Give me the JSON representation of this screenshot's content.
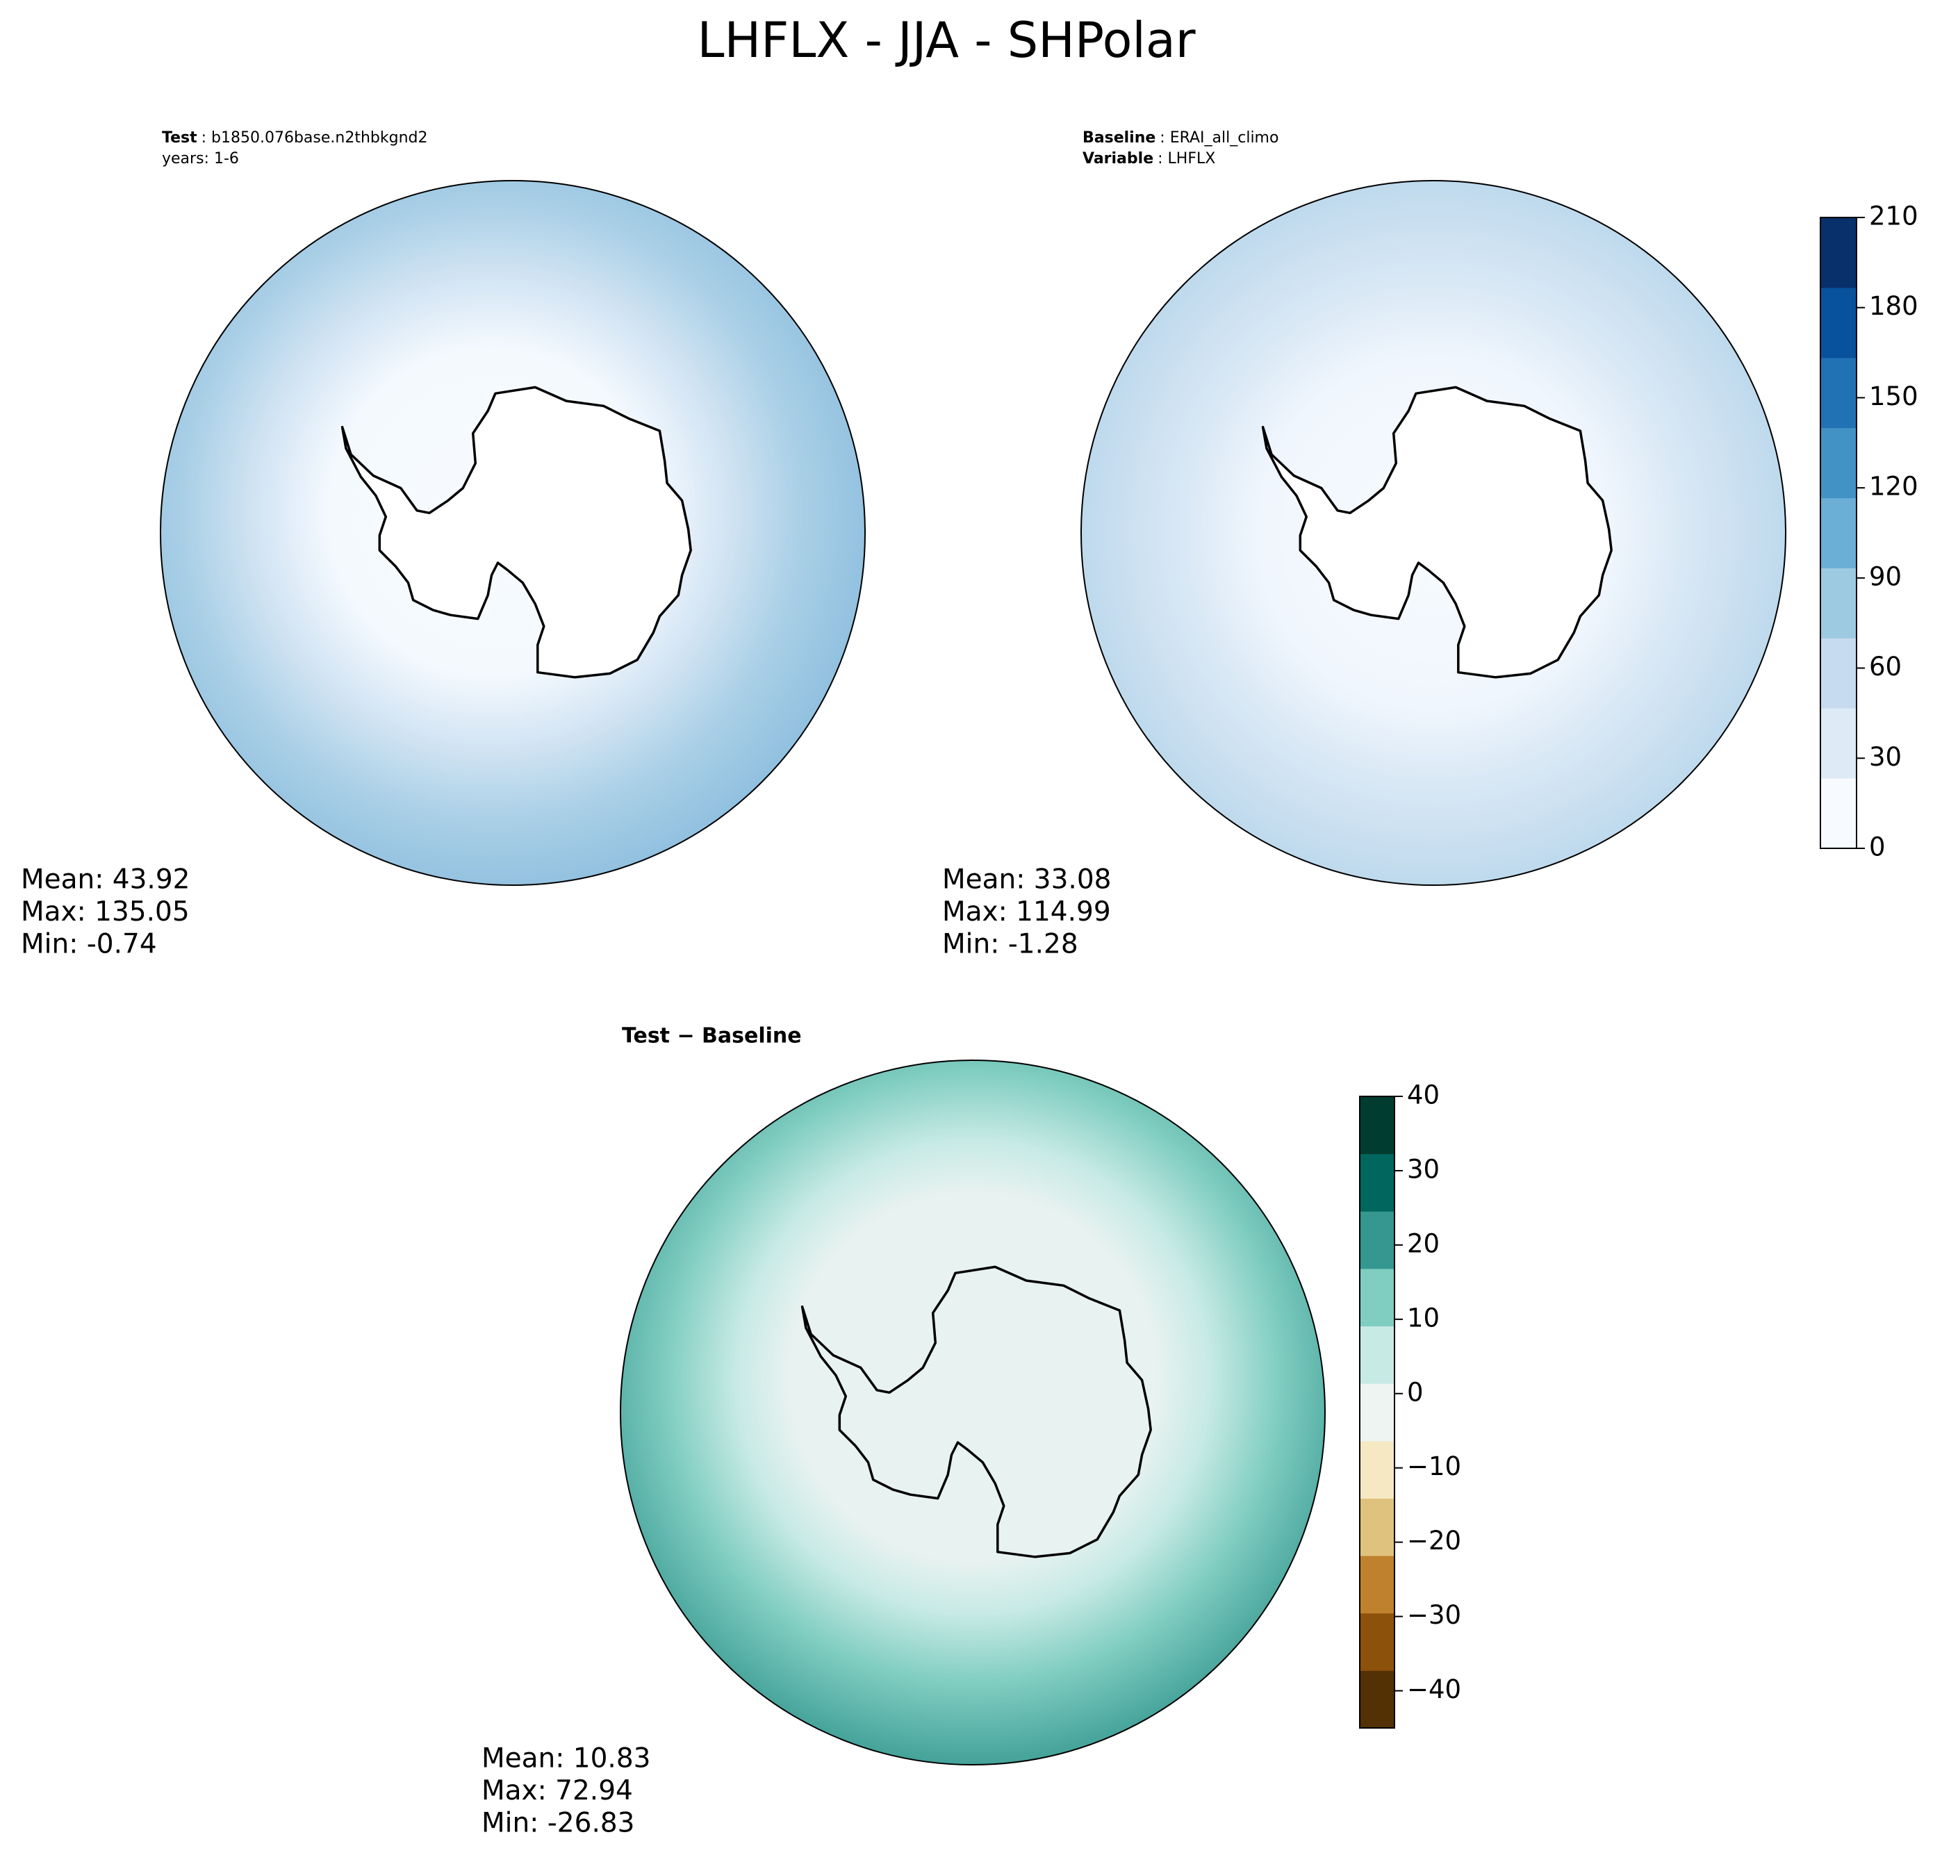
{
  "title": "LHFLX - JJA - SHPolar",
  "chart_data": [
    {
      "type": "map",
      "header": [
        {
          "key": "Test",
          "text": ": b1850.076base.n2thbkgnd2"
        },
        {
          "key": null,
          "text": "years: 1-6"
        }
      ],
      "stats": [
        "Mean: 43.92",
        "Max: 135.05",
        "Min: -0.74"
      ]
    },
    {
      "type": "map",
      "header": [
        {
          "key": "Baseline",
          "text": ": ERAI_all_climo"
        },
        {
          "key": "Variable",
          "text": ": LHFLX"
        }
      ],
      "stats": [
        "Mean: 33.08",
        "Max: 114.99",
        "Min: -1.28"
      ],
      "colorbar": {
        "clim": [
          0,
          210
        ],
        "ticks": [
          0,
          30,
          60,
          90,
          120,
          150,
          180,
          210
        ],
        "colors": [
          "#f7fbff",
          "#deebf7",
          "#c6dbef",
          "#9ecae1",
          "#6baed6",
          "#4292c6",
          "#2171b5",
          "#08519c",
          "#08306b"
        ]
      }
    },
    {
      "type": "map",
      "title": "Test − Baseline",
      "stats": [
        "Mean: 10.83",
        "Max: 72.94",
        "Min: -26.83"
      ],
      "colorbar": {
        "clim": [
          -45,
          40
        ],
        "ticks": [
          {
            "value": -40,
            "label": "−40"
          },
          {
            "value": -30,
            "label": "−30"
          },
          {
            "value": -20,
            "label": "−20"
          },
          {
            "value": -10,
            "label": "−10"
          },
          0,
          10,
          20,
          30,
          40
        ],
        "colors": [
          "#543005",
          "#8c510a",
          "#bf812d",
          "#dfc27d",
          "#f6e8c3",
          "#eef4f2",
          "#c7eae5",
          "#80cdc1",
          "#35978f",
          "#01665e",
          "#003c30"
        ]
      }
    }
  ]
}
